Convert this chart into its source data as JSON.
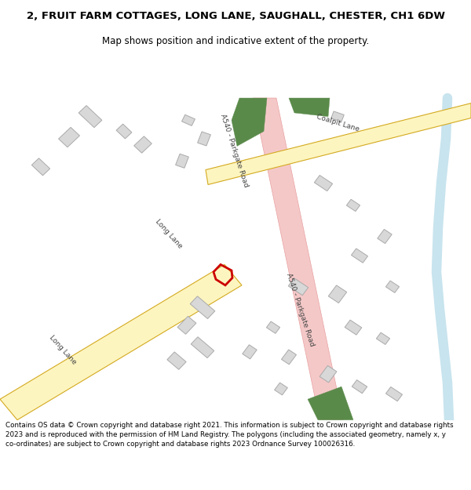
{
  "title": "2, FRUIT FARM COTTAGES, LONG LANE, SAUGHALL, CHESTER, CH1 6DW",
  "subtitle": "Map shows position and indicative extent of the property.",
  "footer": "Contains OS data © Crown copyright and database right 2021. This information is subject to Crown copyright and database rights 2023 and is reproduced with the permission of HM Land Registry. The polygons (including the associated geometry, namely x, y co-ordinates) are subject to Crown copyright and database rights 2023 Ordnance Survey 100026316.",
  "bg_color": "#ffffff",
  "map_bg": "#f7f6f4",
  "road_A540_fill": "#f5c8c8",
  "road_A540_edge": "#e8a0a0",
  "road_yellow_fill": "#fdf5c0",
  "road_yellow_edge": "#d4aa20",
  "green_color": "#5a8a4a",
  "building_fill": "#d8d8d8",
  "building_edge": "#aaaaaa",
  "river_color": "#c8e4ee",
  "plot_color": "#cc0000",
  "label_color": "#444444",
  "title_fontsize": 9.5,
  "subtitle_fontsize": 8.5,
  "footer_fontsize": 6.3,
  "label_fontsize": 6.5
}
